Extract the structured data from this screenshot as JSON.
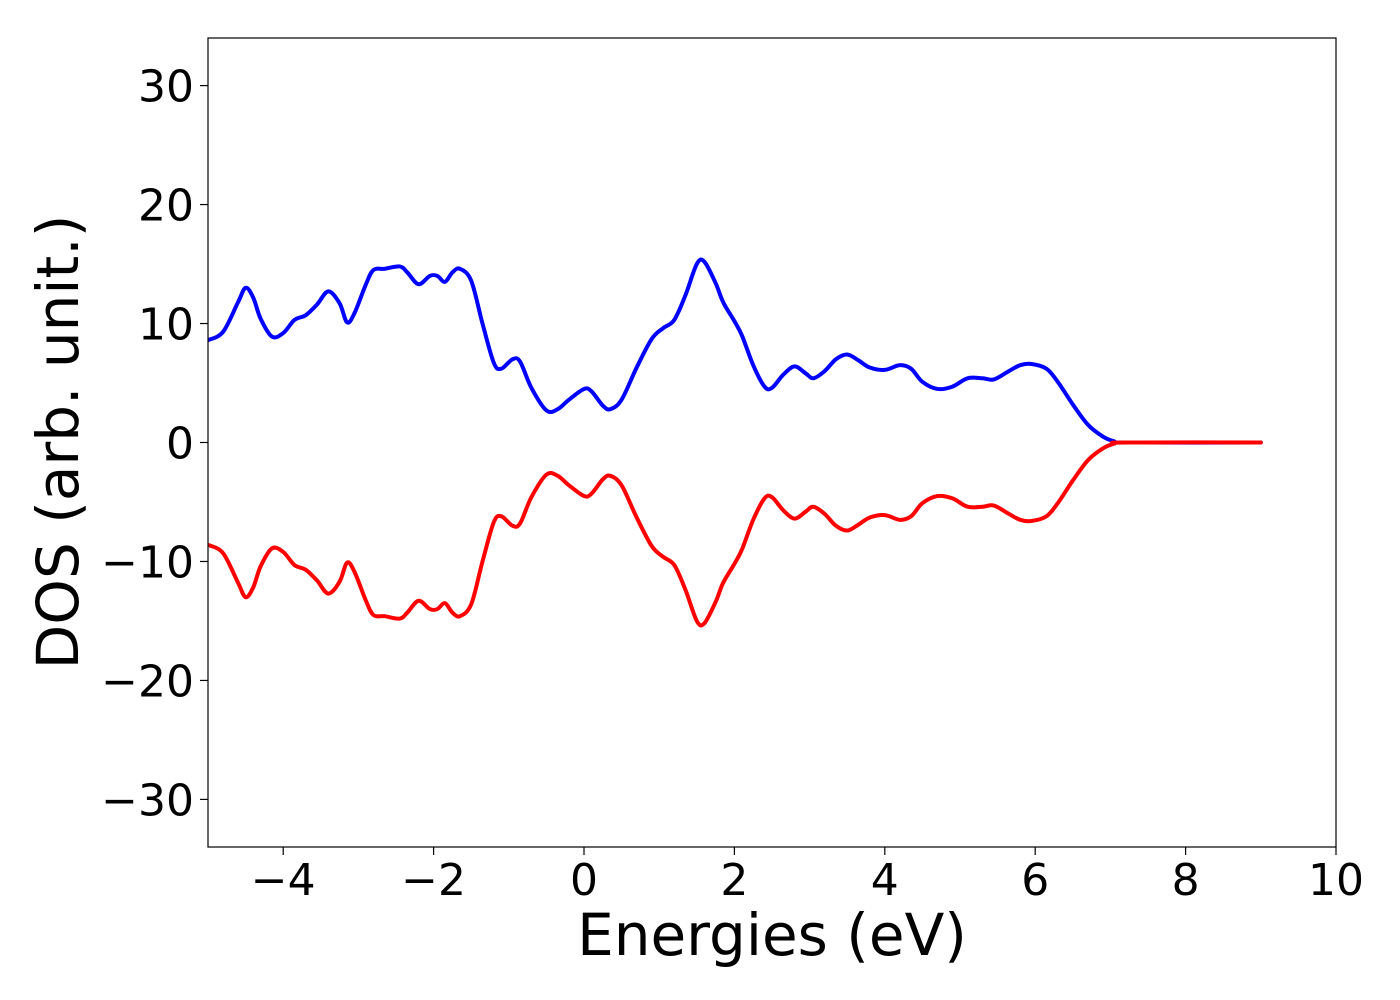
{
  "chart_data": {
    "type": "line",
    "xlabel": "Energies (eV)",
    "ylabel": "DOS (arb. unit.)",
    "xlim": [
      -5,
      10
    ],
    "ylim": [
      -34,
      34
    ],
    "xticks": [
      -4,
      -2,
      0,
      2,
      4,
      6,
      8,
      10
    ],
    "xtick_labels": [
      "−4",
      "−2",
      "0",
      "2",
      "4",
      "6",
      "8",
      "10"
    ],
    "yticks": [
      -30,
      -20,
      -10,
      0,
      10,
      20,
      30
    ],
    "ytick_labels": [
      "−30",
      "−20",
      "−10",
      "0",
      "10",
      "20",
      "30"
    ],
    "grid": false,
    "series": [
      {
        "color": "#0000ff",
        "points": [
          [
            -5.0,
            8.6
          ],
          [
            -4.8,
            9.3
          ],
          [
            -4.6,
            11.8
          ],
          [
            -4.5,
            13.0
          ],
          [
            -4.4,
            12.2
          ],
          [
            -4.3,
            10.4
          ],
          [
            -4.15,
            8.9
          ],
          [
            -4.0,
            9.2
          ],
          [
            -3.85,
            10.3
          ],
          [
            -3.7,
            10.7
          ],
          [
            -3.55,
            11.6
          ],
          [
            -3.4,
            12.7
          ],
          [
            -3.25,
            11.7
          ],
          [
            -3.15,
            10.1
          ],
          [
            -3.05,
            10.9
          ],
          [
            -2.9,
            13.3
          ],
          [
            -2.8,
            14.5
          ],
          [
            -2.65,
            14.6
          ],
          [
            -2.45,
            14.8
          ],
          [
            -2.35,
            14.3
          ],
          [
            -2.2,
            13.3
          ],
          [
            -2.05,
            14.0
          ],
          [
            -1.95,
            14.0
          ],
          [
            -1.85,
            13.5
          ],
          [
            -1.75,
            14.3
          ],
          [
            -1.65,
            14.6
          ],
          [
            -1.5,
            13.6
          ],
          [
            -1.35,
            10.0
          ],
          [
            -1.2,
            6.7
          ],
          [
            -1.1,
            6.2
          ],
          [
            -0.95,
            7.0
          ],
          [
            -0.85,
            6.8
          ],
          [
            -0.7,
            4.6
          ],
          [
            -0.5,
            2.7
          ],
          [
            -0.35,
            2.8
          ],
          [
            -0.2,
            3.6
          ],
          [
            0.0,
            4.5
          ],
          [
            0.1,
            4.3
          ],
          [
            0.25,
            3.1
          ],
          [
            0.35,
            2.8
          ],
          [
            0.5,
            3.6
          ],
          [
            0.7,
            6.3
          ],
          [
            0.9,
            8.7
          ],
          [
            1.05,
            9.6
          ],
          [
            1.2,
            10.3
          ],
          [
            1.35,
            12.4
          ],
          [
            1.5,
            15.0
          ],
          [
            1.6,
            15.2
          ],
          [
            1.75,
            13.4
          ],
          [
            1.85,
            11.8
          ],
          [
            2.0,
            10.2
          ],
          [
            2.1,
            9.0
          ],
          [
            2.25,
            6.5
          ],
          [
            2.4,
            4.7
          ],
          [
            2.5,
            4.6
          ],
          [
            2.65,
            5.7
          ],
          [
            2.8,
            6.4
          ],
          [
            2.95,
            5.8
          ],
          [
            3.05,
            5.4
          ],
          [
            3.2,
            6.0
          ],
          [
            3.35,
            7.0
          ],
          [
            3.5,
            7.4
          ],
          [
            3.65,
            6.9
          ],
          [
            3.8,
            6.3
          ],
          [
            4.0,
            6.1
          ],
          [
            4.2,
            6.5
          ],
          [
            4.35,
            6.2
          ],
          [
            4.5,
            5.1
          ],
          [
            4.7,
            4.5
          ],
          [
            4.9,
            4.7
          ],
          [
            5.1,
            5.4
          ],
          [
            5.3,
            5.4
          ],
          [
            5.45,
            5.3
          ],
          [
            5.65,
            6.0
          ],
          [
            5.8,
            6.5
          ],
          [
            5.95,
            6.6
          ],
          [
            6.15,
            6.2
          ],
          [
            6.3,
            5.1
          ],
          [
            6.5,
            3.2
          ],
          [
            6.7,
            1.5
          ],
          [
            6.9,
            0.5
          ],
          [
            7.05,
            0.1
          ],
          [
            7.2,
            0.0
          ],
          [
            9.0,
            0.0
          ]
        ]
      },
      {
        "color": "#ff0000",
        "points": [
          [
            -5.0,
            -8.6
          ],
          [
            -4.8,
            -9.3
          ],
          [
            -4.6,
            -11.8
          ],
          [
            -4.5,
            -13.0
          ],
          [
            -4.4,
            -12.2
          ],
          [
            -4.3,
            -10.4
          ],
          [
            -4.15,
            -8.9
          ],
          [
            -4.0,
            -9.2
          ],
          [
            -3.85,
            -10.3
          ],
          [
            -3.7,
            -10.7
          ],
          [
            -3.55,
            -11.6
          ],
          [
            -3.4,
            -12.7
          ],
          [
            -3.25,
            -11.7
          ],
          [
            -3.15,
            -10.1
          ],
          [
            -3.05,
            -10.9
          ],
          [
            -2.9,
            -13.3
          ],
          [
            -2.8,
            -14.5
          ],
          [
            -2.65,
            -14.6
          ],
          [
            -2.45,
            -14.8
          ],
          [
            -2.35,
            -14.3
          ],
          [
            -2.2,
            -13.3
          ],
          [
            -2.05,
            -14.0
          ],
          [
            -1.95,
            -14.0
          ],
          [
            -1.85,
            -13.5
          ],
          [
            -1.75,
            -14.3
          ],
          [
            -1.65,
            -14.6
          ],
          [
            -1.5,
            -13.6
          ],
          [
            -1.35,
            -10.0
          ],
          [
            -1.2,
            -6.7
          ],
          [
            -1.1,
            -6.2
          ],
          [
            -0.95,
            -7.0
          ],
          [
            -0.85,
            -6.8
          ],
          [
            -0.7,
            -4.6
          ],
          [
            -0.5,
            -2.7
          ],
          [
            -0.35,
            -2.8
          ],
          [
            -0.2,
            -3.6
          ],
          [
            0.0,
            -4.5
          ],
          [
            0.1,
            -4.3
          ],
          [
            0.25,
            -3.1
          ],
          [
            0.35,
            -2.8
          ],
          [
            0.5,
            -3.6
          ],
          [
            0.7,
            -6.3
          ],
          [
            0.9,
            -8.7
          ],
          [
            1.05,
            -9.6
          ],
          [
            1.2,
            -10.3
          ],
          [
            1.35,
            -12.4
          ],
          [
            1.5,
            -15.0
          ],
          [
            1.6,
            -15.2
          ],
          [
            1.75,
            -13.4
          ],
          [
            1.85,
            -11.8
          ],
          [
            2.0,
            -10.2
          ],
          [
            2.1,
            -9.0
          ],
          [
            2.25,
            -6.5
          ],
          [
            2.4,
            -4.7
          ],
          [
            2.5,
            -4.6
          ],
          [
            2.65,
            -5.7
          ],
          [
            2.8,
            -6.4
          ],
          [
            2.95,
            -5.8
          ],
          [
            3.05,
            -5.4
          ],
          [
            3.2,
            -6.0
          ],
          [
            3.35,
            -7.0
          ],
          [
            3.5,
            -7.4
          ],
          [
            3.65,
            -6.9
          ],
          [
            3.8,
            -6.3
          ],
          [
            4.0,
            -6.1
          ],
          [
            4.2,
            -6.5
          ],
          [
            4.35,
            -6.2
          ],
          [
            4.5,
            -5.1
          ],
          [
            4.7,
            -4.5
          ],
          [
            4.9,
            -4.7
          ],
          [
            5.1,
            -5.4
          ],
          [
            5.3,
            -5.4
          ],
          [
            5.45,
            -5.3
          ],
          [
            5.65,
            -6.0
          ],
          [
            5.8,
            -6.5
          ],
          [
            5.95,
            -6.6
          ],
          [
            6.15,
            -6.2
          ],
          [
            6.3,
            -5.1
          ],
          [
            6.5,
            -3.2
          ],
          [
            6.7,
            -1.5
          ],
          [
            6.9,
            -0.5
          ],
          [
            7.05,
            -0.1
          ],
          [
            7.2,
            0.0
          ],
          [
            9.0,
            0.0
          ]
        ]
      }
    ]
  }
}
